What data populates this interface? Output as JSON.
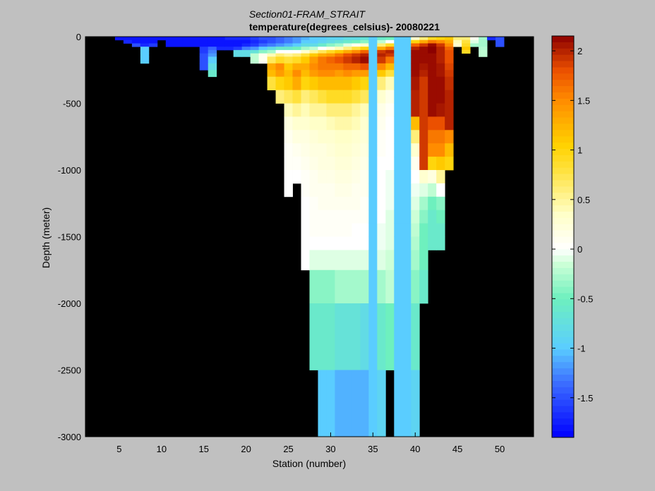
{
  "chart_data": {
    "type": "heatmap",
    "title": "Section01-FRAM_STRAIT",
    "subtitle": "temperature(degrees_celsius)- 20080221",
    "xlabel": "Station (number)",
    "ylabel": "Depth (meter)",
    "xlim": [
      1,
      54
    ],
    "ylim": [
      -3000,
      0
    ],
    "xticks": [
      5,
      10,
      15,
      20,
      25,
      30,
      35,
      40,
      45,
      50
    ],
    "yticks": [
      0,
      -500,
      -1000,
      -1500,
      -2000,
      -2500,
      -3000
    ],
    "colorbar": {
      "clim": [
        -1.9,
        2.15
      ],
      "ticks": [
        2,
        1.5,
        1,
        0.5,
        0,
        -0.5,
        -1,
        -1.5
      ],
      "colormap": "jet-white-centered"
    },
    "nodata_color": "#000000",
    "background": "#c0c0c0",
    "depth_levels": [
      0,
      25,
      50,
      75,
      100,
      125,
      150,
      200,
      250,
      300,
      400,
      500,
      600,
      700,
      800,
      900,
      1000,
      1100,
      1200,
      1300,
      1400,
      1500,
      1600,
      1750,
      2000,
      2500,
      3000
    ],
    "stations": [
      {
        "x": 5,
        "bottom": 25,
        "t": [
          -1.8
        ]
      },
      {
        "x": 6,
        "bottom": 50,
        "t": [
          -1.8,
          -1.7
        ]
      },
      {
        "x": 7,
        "bottom": 75,
        "t": [
          -1.8,
          -1.8,
          -1.5
        ]
      },
      {
        "x": 8,
        "bottom": 200,
        "t": [
          -1.8,
          -1.8,
          -1.7,
          -1.0,
          -1.0,
          -1.0,
          -1.0
        ]
      },
      {
        "x": 9,
        "bottom": 75,
        "t": [
          -1.8,
          -1.8,
          -1.6
        ]
      },
      {
        "x": 10,
        "bottom": 25,
        "t": [
          -1.8
        ]
      },
      {
        "x": 11,
        "bottom": 75,
        "t": [
          -1.8,
          -1.8,
          -1.8
        ]
      },
      {
        "x": 12,
        "bottom": 75,
        "t": [
          -1.8,
          -1.8,
          -1.8
        ]
      },
      {
        "x": 13,
        "bottom": 75,
        "t": [
          -1.8,
          -1.8,
          -1.8
        ]
      },
      {
        "x": 14,
        "bottom": 75,
        "t": [
          -1.8,
          -1.8,
          -1.8
        ]
      },
      {
        "x": 15,
        "bottom": 250,
        "t": [
          -1.8,
          -1.8,
          -1.8,
          -1.6,
          -1.6,
          -1.5,
          -1.5,
          -1.5
        ]
      },
      {
        "x": 16,
        "bottom": 300,
        "t": [
          -1.8,
          -1.8,
          -1.8,
          -1.4,
          -1.3,
          -1.2,
          -1.0,
          -0.8,
          -0.6
        ]
      },
      {
        "x": 17,
        "bottom": 100,
        "t": [
          -1.8,
          -1.8,
          -1.8,
          -1.7
        ]
      },
      {
        "x": 18,
        "bottom": 100,
        "t": [
          -1.7,
          -1.8,
          -1.8,
          -1.7
        ]
      },
      {
        "x": 19,
        "bottom": 150,
        "t": [
          -1.7,
          -1.8,
          -1.8,
          -1.6,
          -0.8,
          -0.8
        ]
      },
      {
        "x": 20,
        "bottom": 150,
        "t": [
          -1.7,
          -1.8,
          -1.7,
          -1.3,
          -0.8,
          -0.8
        ]
      },
      {
        "x": 21,
        "bottom": 200,
        "t": [
          -1.6,
          -1.7,
          -1.6,
          -1.2,
          -0.7,
          -0.2,
          -0.2
        ]
      },
      {
        "x": 22,
        "bottom": 200,
        "t": [
          -1.5,
          -1.6,
          -1.4,
          -1.0,
          -0.4,
          0.1,
          0.1
        ]
      },
      {
        "x": 23,
        "bottom": 400,
        "t": [
          -1.5,
          -1.5,
          -1.3,
          -0.8,
          -0.3,
          0.4,
          0.7,
          1.3,
          1.2,
          0.8
        ]
      },
      {
        "x": 24,
        "bottom": 500,
        "t": [
          -1.4,
          -1.4,
          -1.2,
          -0.6,
          0.0,
          0.6,
          0.9,
          1.5,
          1.4,
          1.0,
          0.6
        ]
      },
      {
        "x": 25,
        "bottom": 1200,
        "t": [
          -1.3,
          -1.3,
          -1.1,
          -0.6,
          0.0,
          0.5,
          0.8,
          1.1,
          1.2,
          1.1,
          0.7,
          0.4,
          0.2,
          0.1,
          0.05,
          0.05,
          0.0,
          0.0,
          0.0
        ]
      },
      {
        "x": 26,
        "bottom": 1100,
        "t": [
          -1.2,
          -1.2,
          -1.0,
          -0.5,
          0.0,
          0.6,
          0.9,
          1.3,
          1.5,
          1.3,
          0.8,
          0.5,
          0.3,
          0.2,
          0.1,
          0.05,
          0.0,
          0.0
        ]
      },
      {
        "x": 27,
        "bottom": 1750,
        "t": [
          -1.1,
          -1.0,
          -0.8,
          -0.3,
          0.3,
          0.8,
          1.1,
          1.3,
          1.2,
          1.0,
          0.6,
          0.4,
          0.3,
          0.2,
          0.15,
          0.1,
          0.05,
          0.05,
          0.0,
          0.0,
          0.0,
          0.0,
          0.0
        ]
      },
      {
        "x": 28,
        "bottom": 2500,
        "t": [
          -1.0,
          -1.0,
          -0.8,
          -0.2,
          0.5,
          1.1,
          1.4,
          1.5,
          1.4,
          1.1,
          0.7,
          0.5,
          0.35,
          0.25,
          0.2,
          0.15,
          0.1,
          0.1,
          0.05,
          0.05,
          0.05,
          0.0,
          -0.1,
          -0.4,
          -0.6,
          -1.0
        ]
      },
      {
        "x": 29,
        "bottom": 3000,
        "t": [
          -1.0,
          -0.9,
          -0.6,
          0.0,
          0.7,
          1.3,
          1.6,
          1.6,
          1.5,
          1.2,
          0.8,
          0.5,
          0.35,
          0.3,
          0.2,
          0.2,
          0.15,
          0.1,
          0.1,
          0.05,
          0.05,
          0.0,
          -0.1,
          -0.4,
          -0.6,
          -1.0,
          -1.1
        ]
      },
      {
        "x": 30,
        "bottom": 3000,
        "t": [
          -0.9,
          -0.8,
          -0.4,
          0.2,
          0.9,
          1.4,
          1.7,
          1.6,
          1.5,
          1.2,
          0.9,
          0.6,
          0.4,
          0.3,
          0.25,
          0.2,
          0.15,
          0.1,
          0.1,
          0.05,
          0.05,
          0.0,
          -0.1,
          -0.4,
          -0.6,
          -1.0,
          -1.1
        ]
      },
      {
        "x": 31,
        "bottom": 3000,
        "t": [
          -0.9,
          -0.7,
          -0.3,
          0.4,
          1.1,
          1.6,
          1.8,
          1.6,
          1.4,
          1.2,
          0.9,
          0.6,
          0.45,
          0.35,
          0.3,
          0.25,
          0.2,
          0.15,
          0.1,
          0.05,
          0.05,
          0.0,
          -0.1,
          -0.3,
          -0.7,
          -1.1,
          -1.3
        ]
      },
      {
        "x": 32,
        "bottom": 3000,
        "t": [
          -0.8,
          -0.6,
          -0.1,
          0.6,
          1.3,
          1.8,
          1.9,
          1.7,
          1.5,
          1.2,
          0.9,
          0.6,
          0.45,
          0.35,
          0.3,
          0.25,
          0.2,
          0.15,
          0.1,
          0.05,
          0.05,
          0.0,
          -0.1,
          -0.3,
          -0.7,
          -1.1,
          -1.3
        ]
      },
      {
        "x": 33,
        "bottom": 3000,
        "t": [
          -0.8,
          -0.5,
          0.1,
          0.8,
          1.5,
          1.9,
          2.0,
          1.7,
          1.4,
          1.1,
          0.8,
          0.5,
          0.4,
          0.3,
          0.25,
          0.2,
          0.15,
          0.1,
          0.1,
          0.05,
          0.0,
          0.0,
          -0.1,
          -0.3,
          -0.7,
          -1.1,
          -1.2
        ]
      },
      {
        "x": 34,
        "bottom": 3000,
        "t": [
          -0.7,
          -0.4,
          0.3,
          1.0,
          1.7,
          2.0,
          2.1,
          1.8,
          1.4,
          1.0,
          0.7,
          0.4,
          0.3,
          0.25,
          0.2,
          0.15,
          0.1,
          0.1,
          0.05,
          0.05,
          0.0,
          0.0,
          -0.1,
          -0.3,
          -0.8,
          -1.1,
          -1.1
        ]
      },
      {
        "x": 35,
        "bottom": 3000,
        "t": [
          -1.0,
          -1.0,
          -1.0,
          -1.0,
          -1.0,
          -1.0,
          -1.0,
          -1.0,
          -1.0,
          -1.0,
          -1.0,
          -1.0,
          -1.0,
          -1.0,
          -1.0,
          -1.0,
          -1.0,
          -1.0,
          -1.0,
          -1.0,
          -1.0,
          -1.0,
          -1.0,
          -1.0,
          -1.0,
          -1.0,
          -1.0
        ]
      },
      {
        "x": 36,
        "bottom": 3000,
        "t": [
          -0.6,
          -0.2,
          0.6,
          1.3,
          1.9,
          2.0,
          1.9,
          1.5,
          1.1,
          0.6,
          0.3,
          0.15,
          0.1,
          0.05,
          0.05,
          0.0,
          0.0,
          0.0,
          0.0,
          0.0,
          -0.05,
          -0.05,
          -0.1,
          -0.3,
          -0.6,
          -0.9,
          -1.0
        ]
      },
      {
        "x": 37,
        "bottom": 2500,
        "t": [
          -0.5,
          0.0,
          0.9,
          1.6,
          2.0,
          1.9,
          1.6,
          1.2,
          0.8,
          0.4,
          0.15,
          0.05,
          0.0,
          0.0,
          0.0,
          0.0,
          -0.05,
          -0.05,
          -0.05,
          -0.1,
          -0.1,
          -0.1,
          -0.15,
          -0.2,
          -0.5,
          0.05
        ]
      },
      {
        "x": 38,
        "bottom": 3000,
        "t": [
          -1.0,
          -1.0,
          -1.0,
          -1.0,
          -1.0,
          -1.0,
          -1.0,
          -1.0,
          -1.0,
          -1.0,
          -1.0,
          -1.0,
          -1.0,
          -1.0,
          -1.0,
          -1.0,
          -1.0,
          -1.0,
          -1.0,
          -1.0,
          -1.0,
          -1.0,
          -1.0,
          -1.0,
          -1.0,
          -1.0,
          -1.0
        ]
      },
      {
        "x": 39,
        "bottom": 3000,
        "t": [
          -1.0,
          -1.0,
          -1.0,
          -1.0,
          -1.0,
          -1.0,
          -1.0,
          -1.0,
          -1.0,
          -1.0,
          -1.0,
          -1.0,
          -1.0,
          -1.0,
          -1.0,
          -1.0,
          -1.0,
          -1.0,
          -1.0,
          -1.0,
          -1.0,
          -1.0,
          -1.0,
          -1.0,
          -1.0,
          -1.0,
          -1.0
        ]
      },
      {
        "x": 40,
        "bottom": 3000,
        "t": [
          0.3,
          1.0,
          1.7,
          2.0,
          2.1,
          2.1,
          2.1,
          2.1,
          2.1,
          2.05,
          2.0,
          2.0,
          1.2,
          0.6,
          0.3,
          0.1,
          0.0,
          -0.05,
          -0.1,
          -0.15,
          -0.2,
          -0.25,
          -0.3,
          -0.4,
          -0.6,
          -0.9,
          -1.0
        ]
      },
      {
        "x": 41,
        "bottom": 2000,
        "t": [
          0.6,
          1.3,
          1.9,
          2.1,
          2.1,
          2.1,
          2.1,
          2.05,
          2.0,
          1.9,
          1.9,
          1.9,
          1.9,
          1.9,
          1.9,
          1.9,
          0.3,
          -0.1,
          -0.3,
          -0.4,
          -0.5,
          -0.5,
          -0.5,
          -0.6,
          -0.6
        ]
      },
      {
        "x": 42,
        "bottom": 1600,
        "t": [
          0.9,
          1.6,
          2.1,
          2.15,
          2.15,
          2.1,
          2.1,
          2.1,
          2.1,
          2.1,
          2.1,
          2.1,
          1.8,
          1.6,
          1.5,
          1.0,
          0.2,
          -0.2,
          -0.5,
          -0.6,
          -0.6,
          -0.6,
          -0.7
        ]
      },
      {
        "x": 43,
        "bottom": 1600,
        "t": [
          1.0,
          1.5,
          1.9,
          2.0,
          2.0,
          2.0,
          2.0,
          2.05,
          2.05,
          2.1,
          2.1,
          2.05,
          1.8,
          1.6,
          1.5,
          1.1,
          0.5,
          0.0,
          -0.4,
          -0.5,
          -0.6,
          -0.6,
          -0.6
        ]
      },
      {
        "x": 44,
        "bottom": 1000,
        "t": [
          1.1,
          1.3,
          1.5,
          1.7,
          1.8,
          1.8,
          1.8,
          1.85,
          1.9,
          1.95,
          2.0,
          2.0,
          2.0,
          1.5,
          1.2,
          1.0
        ]
      },
      {
        "x": 45,
        "bottom": 75,
        "t": [
          0.6,
          0.4,
          0.3
        ]
      },
      {
        "x": 46,
        "bottom": 125,
        "t": [
          0.6,
          0.8,
          0.9,
          1.1,
          0.9
        ]
      },
      {
        "x": 47,
        "bottom": 75,
        "t": [
          0.1,
          -0.1,
          -0.3
        ]
      },
      {
        "x": 48,
        "bottom": 150,
        "t": [
          -0.3,
          -0.3,
          -0.3,
          -0.25,
          -0.2,
          -0.2
        ]
      },
      {
        "x": 49,
        "bottom": 25,
        "t": [
          -1.7
        ]
      },
      {
        "x": 50,
        "bottom": 75,
        "t": [
          -1.5,
          -1.5,
          -1.5
        ]
      }
    ]
  }
}
